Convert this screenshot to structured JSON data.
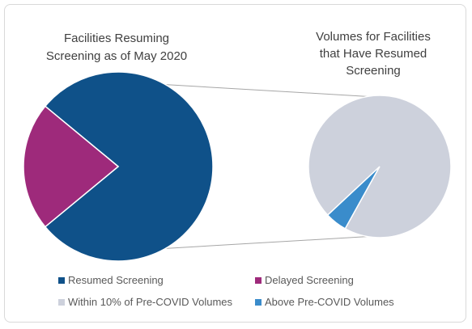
{
  "chart_data": [
    {
      "type": "pie",
      "title": "Facilities Resuming Screening as of May 2020",
      "title_lines": [
        "Facilities Resuming",
        "Screening as of May 2020"
      ],
      "slices": [
        {
          "label": "Resumed Screening",
          "value": 78,
          "color": "#0f5189"
        },
        {
          "label": "Delayed Screening",
          "value": 22,
          "color": "#9e2a7b"
        }
      ]
    },
    {
      "type": "pie",
      "title": "Volumes for Facilities that Have Resumed Screening",
      "title_lines": [
        "Volumes for Facilities",
        "that Have Resumed",
        "Screening"
      ],
      "slices": [
        {
          "label": "Within 10% of Pre-COVID Volumes",
          "value": 95,
          "color": "#cdd1dc"
        },
        {
          "label": "Above Pre-COVID Volumes",
          "value": 5,
          "color": "#3a8ccb"
        }
      ]
    }
  ],
  "legend": {
    "placement": "bottom",
    "items": [
      {
        "label": "Resumed Screening",
        "color": "#0f5189"
      },
      {
        "label": "Delayed Screening",
        "color": "#9e2a7b"
      },
      {
        "label": "Within 10% of Pre-COVID Volumes",
        "color": "#cdd1dc"
      },
      {
        "label": "Above Pre-COVID Volumes",
        "color": "#3a8ccb"
      }
    ]
  },
  "connector_color": "#a6a6a6"
}
